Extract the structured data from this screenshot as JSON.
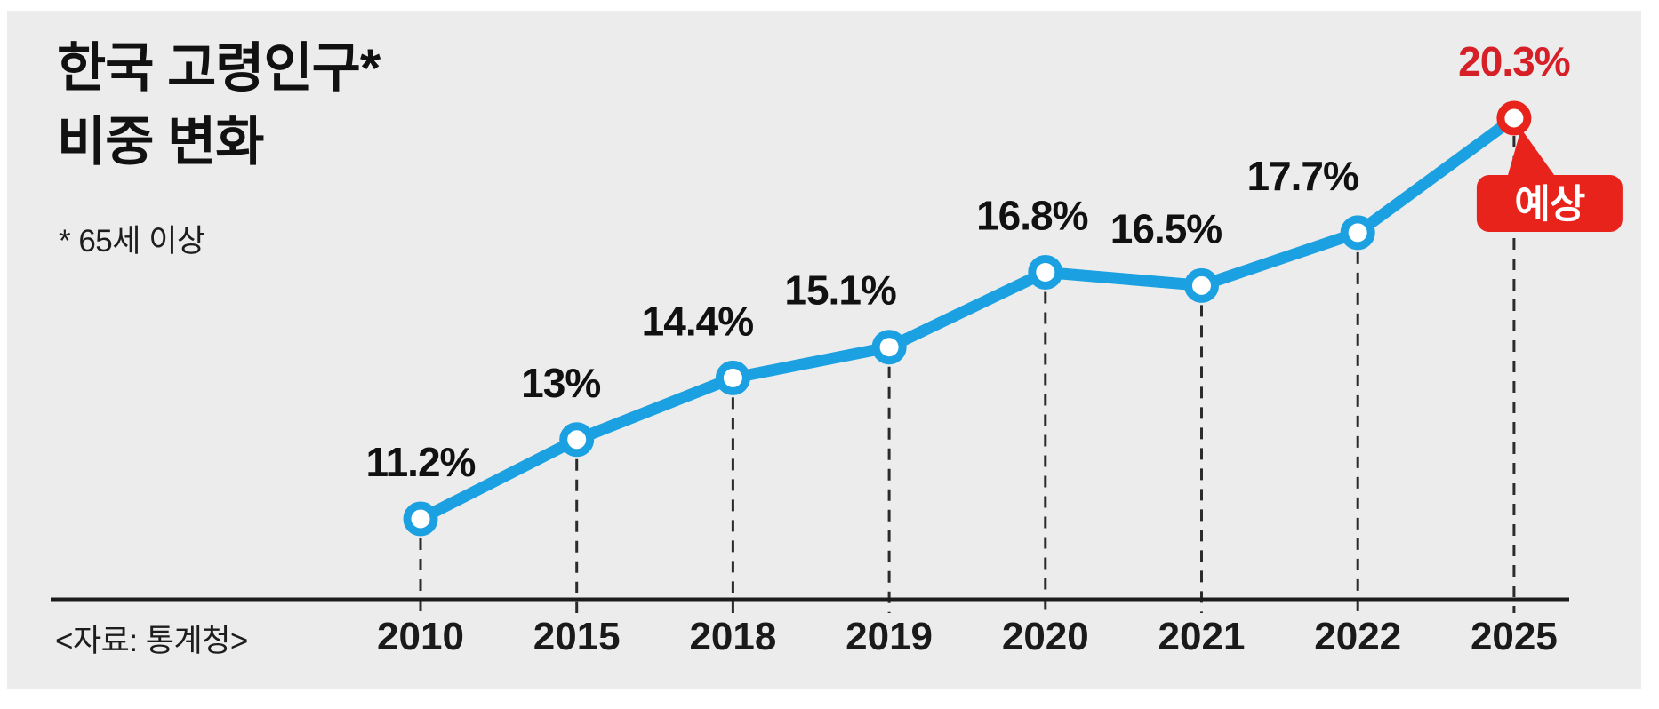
{
  "header": {
    "title_line1": "한국 고령인구*",
    "title_line2": "비중 변화",
    "footnote": "* 65세 이상"
  },
  "source": "<자료: 통계청>",
  "forecast_badge": "예상",
  "colors": {
    "panel_background": "#ECECEC",
    "line_blue": "#1BA1E1",
    "marker_fill": "#FFFFFF",
    "forecast_red": "#E8231C",
    "forecast_label_red": "#D61F26",
    "value_label_black": "#111111",
    "year_label": "#1A1A1A",
    "axis": "#1B1B1B",
    "guide": "#2B2B2B"
  },
  "chart_data": {
    "type": "line",
    "title": "한국 고령인구(65세 이상) 비중 변화",
    "x": [
      "2010",
      "2015",
      "2018",
      "2019",
      "2020",
      "2021",
      "2022",
      "2025"
    ],
    "series": [
      {
        "name": "고령인구 비중(%)",
        "values": [
          11.2,
          13,
          14.4,
          15.1,
          16.8,
          16.5,
          17.7,
          20.3
        ]
      }
    ],
    "point_labels": [
      "11.2%",
      "13%",
      "14.4%",
      "15.1%",
      "16.8%",
      "16.5%",
      "17.7%",
      "20.3%"
    ],
    "forecast_index": 7,
    "forecast_annotation": "예상",
    "xlabel": "",
    "ylabel": "",
    "ylim": [
      10.5,
      21
    ],
    "grid": "vertical dashed guides from each point to x-axis",
    "legend": "none"
  }
}
